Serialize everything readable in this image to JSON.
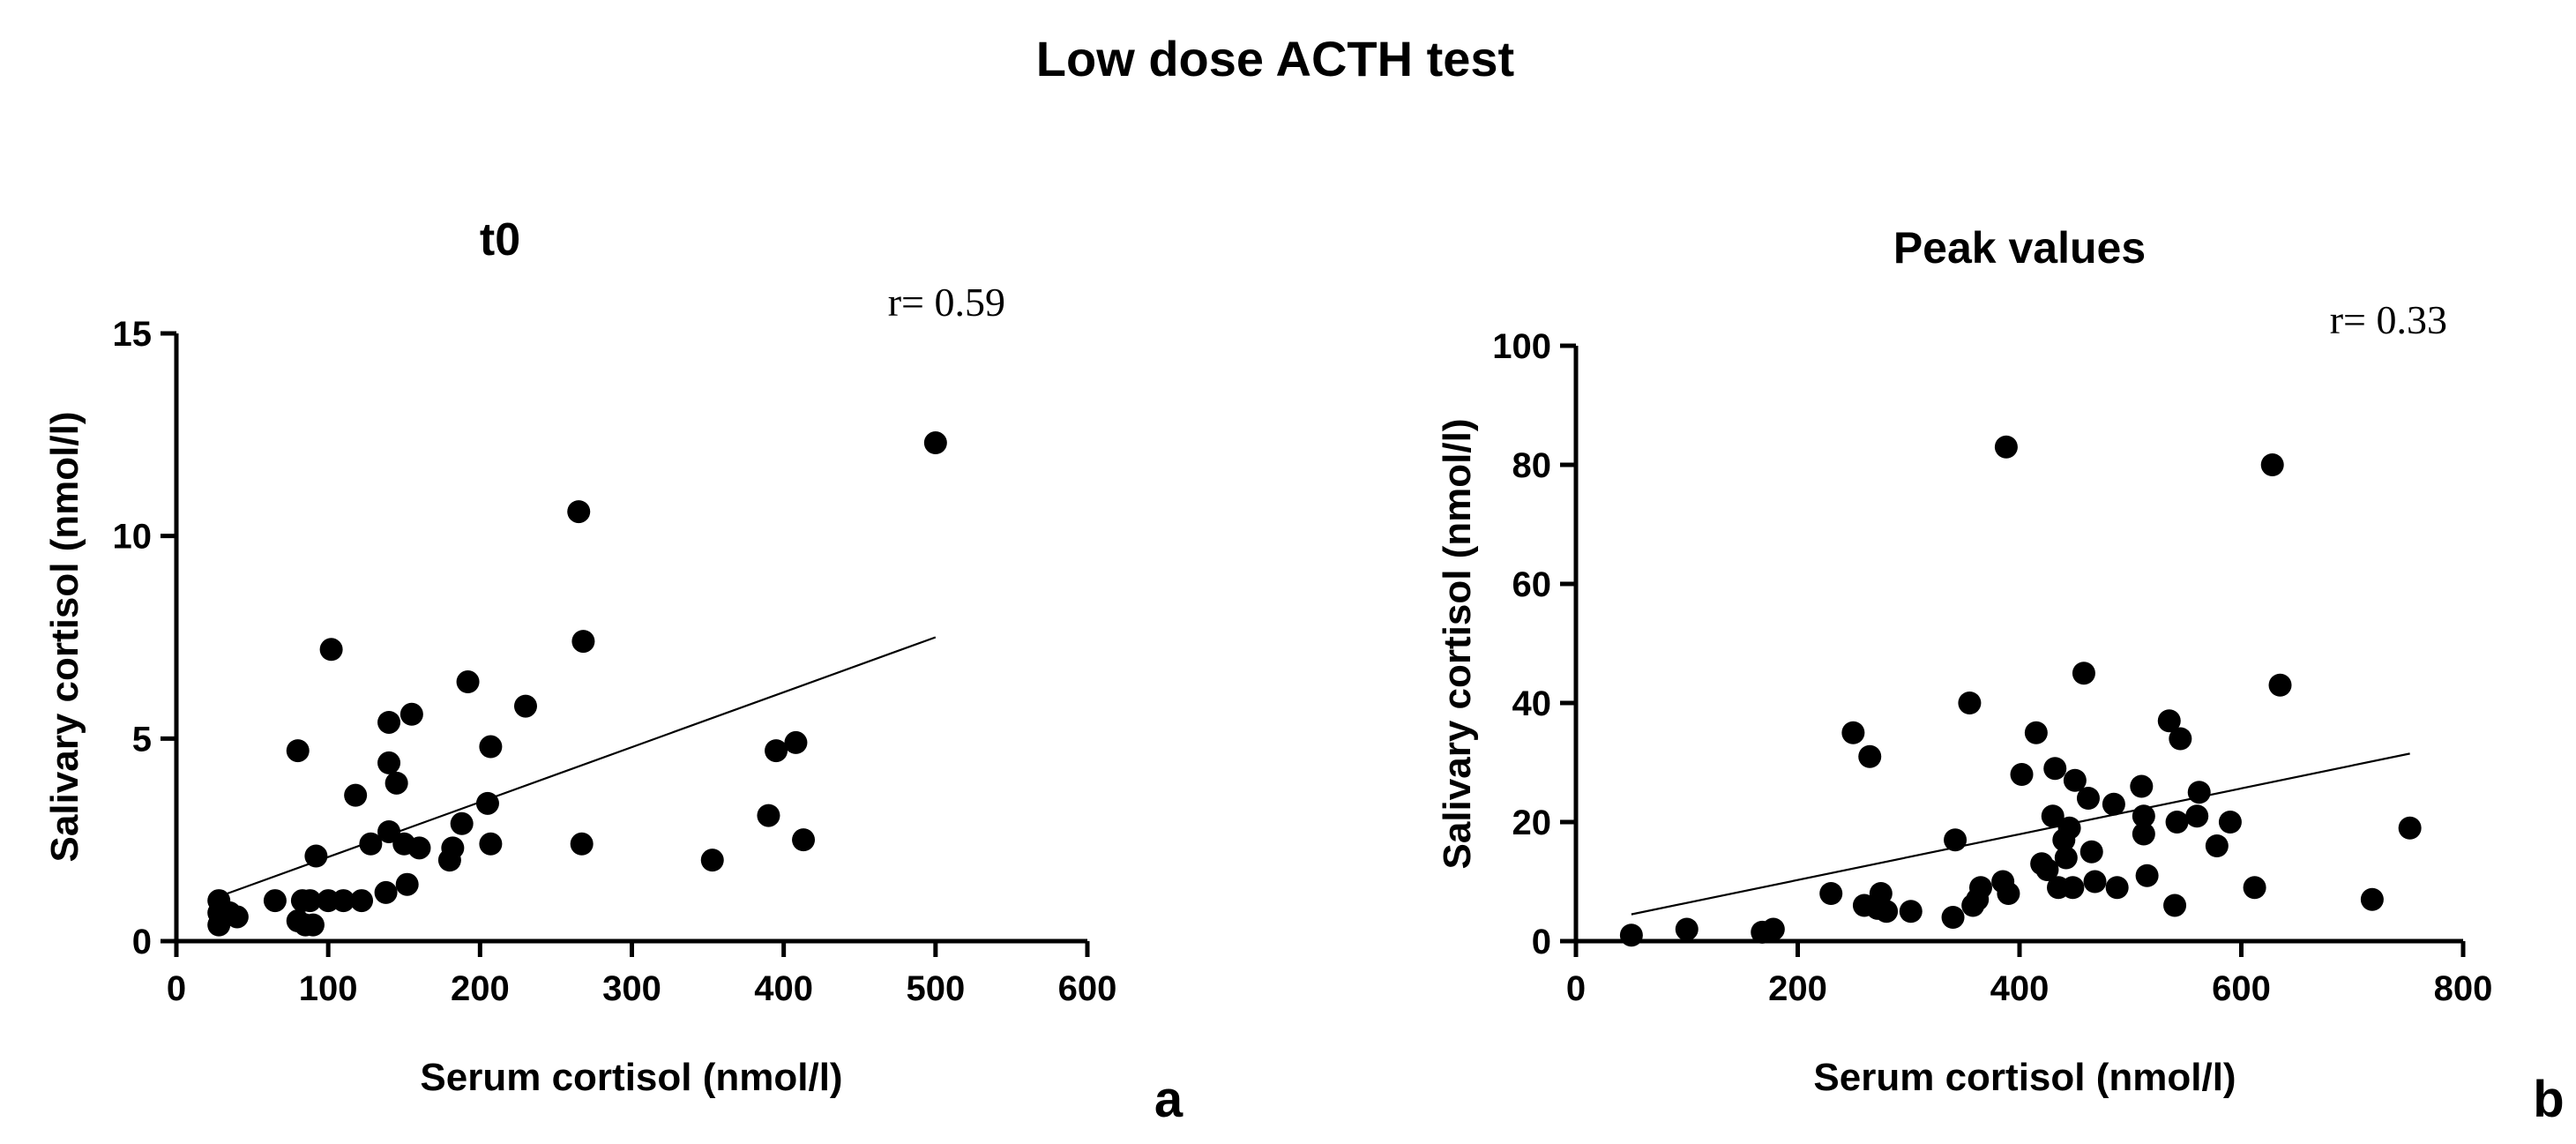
{
  "figure": {
    "title": "Low dose ACTH test"
  },
  "chart_data": [
    {
      "type": "scatter",
      "panel_label": "a",
      "title": "t0",
      "annotation": "r= 0.59",
      "xlabel": "Serum cortisol (nmol/l)",
      "ylabel": "Salivary cortisol (nmol/l)",
      "xlim": [
        0,
        600
      ],
      "ylim": [
        0,
        15
      ],
      "xticks": [
        0,
        100,
        200,
        300,
        400,
        500,
        600
      ],
      "yticks": [
        0,
        5,
        10,
        15
      ],
      "trendline": [
        [
          28,
          1.1
        ],
        [
          500,
          7.5
        ]
      ],
      "series": [
        {
          "name": "t0",
          "points": [
            [
              28,
              1.0
            ],
            [
              28,
              0.7
            ],
            [
              28,
              0.4
            ],
            [
              35,
              0.7
            ],
            [
              40,
              0.6
            ],
            [
              65,
              1.0
            ],
            [
              80,
              4.7
            ],
            [
              80,
              0.5
            ],
            [
              83,
              1.0
            ],
            [
              85,
              0.4
            ],
            [
              88,
              1.0
            ],
            [
              90,
              0.4
            ],
            [
              92,
              2.1
            ],
            [
              100,
              1.0
            ],
            [
              102,
              7.2
            ],
            [
              110,
              1.0
            ],
            [
              118,
              3.6
            ],
            [
              122,
              1.0
            ],
            [
              128,
              2.4
            ],
            [
              138,
              1.2
            ],
            [
              140,
              5.4
            ],
            [
              140,
              4.4
            ],
            [
              140,
              2.7
            ],
            [
              145,
              3.9
            ],
            [
              150,
              2.4
            ],
            [
              152,
              1.4
            ],
            [
              155,
              5.6
            ],
            [
              160,
              2.3
            ],
            [
              180,
              2.0
            ],
            [
              182,
              2.3
            ],
            [
              188,
              2.9
            ],
            [
              192,
              6.4
            ],
            [
              205,
              3.4
            ],
            [
              207,
              4.8
            ],
            [
              207,
              2.4
            ],
            [
              230,
              5.8
            ],
            [
              265,
              10.6
            ],
            [
              268,
              7.4
            ],
            [
              267,
              2.4
            ],
            [
              353,
              2.0
            ],
            [
              390,
              3.1
            ],
            [
              395,
              4.7
            ],
            [
              408,
              4.9
            ],
            [
              413,
              2.5
            ],
            [
              500,
              12.3
            ]
          ]
        }
      ]
    },
    {
      "type": "scatter",
      "panel_label": "b",
      "title": "Peak values",
      "annotation": "r= 0.33",
      "xlabel": "Serum cortisol (nmol/l)",
      "ylabel": "Salivary cortisol (nmol/l)",
      "xlim": [
        0,
        800
      ],
      "ylim": [
        0,
        100
      ],
      "xticks": [
        0,
        200,
        400,
        600,
        800
      ],
      "yticks": [
        0,
        20,
        40,
        60,
        80,
        100
      ],
      "trendline": [
        [
          50,
          4.5
        ],
        [
          752,
          31.5
        ]
      ],
      "series": [
        {
          "name": "Peak values",
          "points": [
            [
              50,
              1
            ],
            [
              100,
              2
            ],
            [
              168,
              1.5
            ],
            [
              178,
              2
            ],
            [
              230,
              8
            ],
            [
              250,
              35
            ],
            [
              260,
              6
            ],
            [
              265,
              31
            ],
            [
              272,
              5.5
            ],
            [
              275,
              8
            ],
            [
              280,
              5
            ],
            [
              302,
              5
            ],
            [
              340,
              4
            ],
            [
              342,
              17
            ],
            [
              355,
              40
            ],
            [
              358,
              6
            ],
            [
              362,
              7
            ],
            [
              365,
              9
            ],
            [
              385,
              10
            ],
            [
              388,
              83
            ],
            [
              390,
              8
            ],
            [
              402,
              28
            ],
            [
              415,
              35
            ],
            [
              420,
              13
            ],
            [
              425,
              12
            ],
            [
              430,
              21
            ],
            [
              432,
              29
            ],
            [
              435,
              9
            ],
            [
              440,
              17
            ],
            [
              442,
              14
            ],
            [
              445,
              19
            ],
            [
              448,
              9
            ],
            [
              450,
              27
            ],
            [
              458,
              45
            ],
            [
              462,
              24
            ],
            [
              465,
              15
            ],
            [
              468,
              10
            ],
            [
              485,
              23
            ],
            [
              488,
              9
            ],
            [
              510,
              26
            ],
            [
              512,
              21
            ],
            [
              512,
              18
            ],
            [
              515,
              11
            ],
            [
              535,
              37
            ],
            [
              540,
              6
            ],
            [
              542,
              20
            ],
            [
              545,
              34
            ],
            [
              560,
              21
            ],
            [
              562,
              25
            ],
            [
              578,
              16
            ],
            [
              590,
              20
            ],
            [
              612,
              9
            ],
            [
              628,
              80
            ],
            [
              635,
              43
            ],
            [
              718,
              7
            ],
            [
              752,
              19
            ]
          ]
        }
      ]
    }
  ]
}
